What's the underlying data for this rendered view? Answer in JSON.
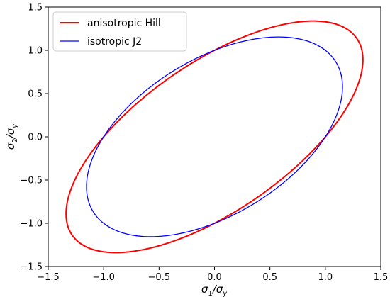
{
  "chart_data": {
    "type": "line",
    "title": "",
    "xlabel": "σ₁/σy",
    "ylabel": "σ₂/σy",
    "xlabel_parts": {
      "main": "σ",
      "sub1": "1",
      "sep": "/σ",
      "sub2": "y"
    },
    "ylabel_parts": {
      "main": "σ",
      "sub1": "2",
      "sep": "/σ",
      "sub2": "y"
    },
    "xlim": [
      -1.5,
      1.5
    ],
    "ylim": [
      -1.5,
      1.5
    ],
    "xticks": [
      -1.5,
      -1.0,
      -0.5,
      0.0,
      0.5,
      1.0,
      1.5
    ],
    "yticks": [
      -1.5,
      -1.0,
      -0.5,
      0.0,
      0.5,
      1.0,
      1.5
    ],
    "xtick_labels": [
      "−1.5",
      "−1.0",
      "−0.5",
      "0.0",
      "0.5",
      "1.0",
      "1.5"
    ],
    "ytick_labels": [
      "−1.5",
      "−1.0",
      "−0.5",
      "0.0",
      "0.5",
      "1.0",
      "1.5"
    ],
    "grid": false,
    "legend_position": "top-left",
    "series": [
      {
        "name": "anisotropic Hill",
        "color": "#ff0000",
        "line_width": 2.0,
        "quadratic_form": {
          "a": 1.0,
          "b": 1.33,
          "c": 1.0
        }
      },
      {
        "name": "isotropic J2",
        "color": "#0000ff",
        "line_width": 1.3,
        "quadratic_form": {
          "a": 1.0,
          "b": 1.0,
          "c": 1.0
        }
      }
    ]
  }
}
